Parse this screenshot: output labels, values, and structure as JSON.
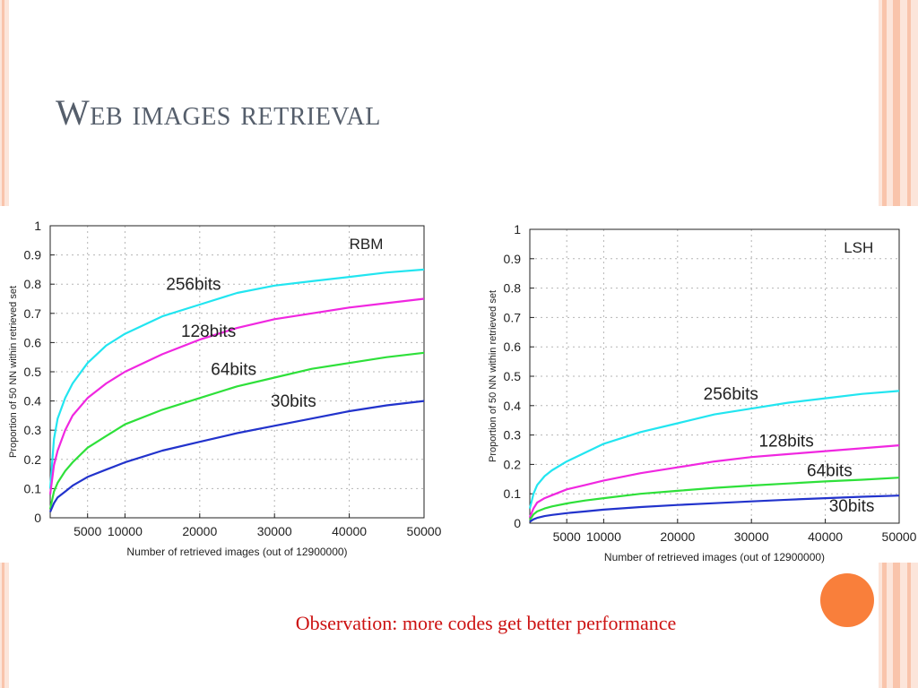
{
  "slide": {
    "title": "Web images retrieval",
    "observation": "Observation: more codes get better performance"
  },
  "colors": {
    "stripe_light": "#fce5da",
    "stripe_mid": "#f9c4ab",
    "accent_orange": "#f97f3b",
    "title_color": "#555e6b",
    "observation_color": "#cc1111"
  },
  "chart_data": [
    {
      "type": "line",
      "annotation": "RBM",
      "xlabel": "Number of retrieved images (out of 12900000)",
      "ylabel": "Proportion of 50 NN within retrieved set",
      "xlim": [
        0,
        50000
      ],
      "ylim": [
        0,
        1
      ],
      "xticks": [
        5000,
        10000,
        20000,
        30000,
        40000,
        50000
      ],
      "yticks": [
        0,
        0.1,
        0.2,
        0.3,
        0.4,
        0.5,
        0.6,
        0.7,
        0.8,
        0.9,
        1
      ],
      "grid": true,
      "series": [
        {
          "name": "256bits",
          "color": "#22e5f0",
          "x": [
            0,
            500,
            1000,
            2000,
            3000,
            5000,
            7500,
            10000,
            15000,
            20000,
            25000,
            30000,
            35000,
            40000,
            45000,
            50000
          ],
          "y": [
            0.1,
            0.27,
            0.34,
            0.41,
            0.46,
            0.53,
            0.59,
            0.63,
            0.69,
            0.73,
            0.77,
            0.795,
            0.81,
            0.825,
            0.84,
            0.85
          ]
        },
        {
          "name": "128bits",
          "color": "#f027e0",
          "x": [
            0,
            500,
            1000,
            2000,
            3000,
            5000,
            7500,
            10000,
            15000,
            20000,
            25000,
            30000,
            35000,
            40000,
            45000,
            50000
          ],
          "y": [
            0.08,
            0.18,
            0.23,
            0.3,
            0.35,
            0.41,
            0.46,
            0.5,
            0.56,
            0.61,
            0.65,
            0.68,
            0.7,
            0.72,
            0.735,
            0.75
          ]
        },
        {
          "name": "64bits",
          "color": "#2ee03a",
          "x": [
            0,
            500,
            1000,
            2000,
            3000,
            5000,
            7500,
            10000,
            15000,
            20000,
            25000,
            30000,
            35000,
            40000,
            45000,
            50000
          ],
          "y": [
            0.03,
            0.09,
            0.12,
            0.16,
            0.19,
            0.24,
            0.28,
            0.32,
            0.37,
            0.41,
            0.45,
            0.48,
            0.51,
            0.53,
            0.55,
            0.565
          ]
        },
        {
          "name": "30bits",
          "color": "#2233cc",
          "x": [
            0,
            500,
            1000,
            2000,
            3000,
            5000,
            7500,
            10000,
            15000,
            20000,
            25000,
            30000,
            35000,
            40000,
            45000,
            50000
          ],
          "y": [
            0.02,
            0.05,
            0.07,
            0.09,
            0.11,
            0.14,
            0.165,
            0.19,
            0.23,
            0.26,
            0.29,
            0.315,
            0.34,
            0.365,
            0.385,
            0.4
          ]
        }
      ]
    },
    {
      "type": "line",
      "annotation": "LSH",
      "xlabel": "Number of retrieved images (out of 12900000)",
      "ylabel": "Proportion of 50 NN within retrieved set",
      "xlim": [
        0,
        50000
      ],
      "ylim": [
        0,
        1
      ],
      "xticks": [
        5000,
        10000,
        20000,
        30000,
        40000,
        50000
      ],
      "yticks": [
        0,
        0.1,
        0.2,
        0.3,
        0.4,
        0.5,
        0.6,
        0.7,
        0.8,
        0.9,
        1
      ],
      "grid": true,
      "series": [
        {
          "name": "256bits",
          "color": "#22e5f0",
          "x": [
            0,
            500,
            1000,
            2000,
            3000,
            5000,
            7500,
            10000,
            15000,
            20000,
            25000,
            30000,
            35000,
            40000,
            45000,
            50000
          ],
          "y": [
            0.05,
            0.1,
            0.13,
            0.16,
            0.18,
            0.21,
            0.24,
            0.27,
            0.31,
            0.34,
            0.37,
            0.39,
            0.41,
            0.425,
            0.44,
            0.45
          ]
        },
        {
          "name": "128bits",
          "color": "#f027e0",
          "x": [
            0,
            500,
            1000,
            2000,
            3000,
            5000,
            7500,
            10000,
            15000,
            20000,
            25000,
            30000,
            35000,
            40000,
            45000,
            50000
          ],
          "y": [
            0.02,
            0.05,
            0.07,
            0.085,
            0.095,
            0.115,
            0.13,
            0.145,
            0.17,
            0.19,
            0.21,
            0.225,
            0.235,
            0.245,
            0.255,
            0.265
          ]
        },
        {
          "name": "64bits",
          "color": "#2ee03a",
          "x": [
            0,
            500,
            1000,
            2000,
            3000,
            5000,
            7500,
            10000,
            15000,
            20000,
            25000,
            30000,
            35000,
            40000,
            45000,
            50000
          ],
          "y": [
            0.01,
            0.03,
            0.04,
            0.05,
            0.057,
            0.067,
            0.077,
            0.085,
            0.1,
            0.11,
            0.12,
            0.128,
            0.135,
            0.142,
            0.148,
            0.155
          ]
        },
        {
          "name": "30bits",
          "color": "#2233cc",
          "x": [
            0,
            500,
            1000,
            2000,
            3000,
            5000,
            7500,
            10000,
            15000,
            20000,
            25000,
            30000,
            35000,
            40000,
            45000,
            50000
          ],
          "y": [
            0.005,
            0.013,
            0.018,
            0.024,
            0.028,
            0.034,
            0.04,
            0.046,
            0.055,
            0.062,
            0.068,
            0.074,
            0.08,
            0.085,
            0.09,
            0.094
          ]
        }
      ]
    }
  ]
}
